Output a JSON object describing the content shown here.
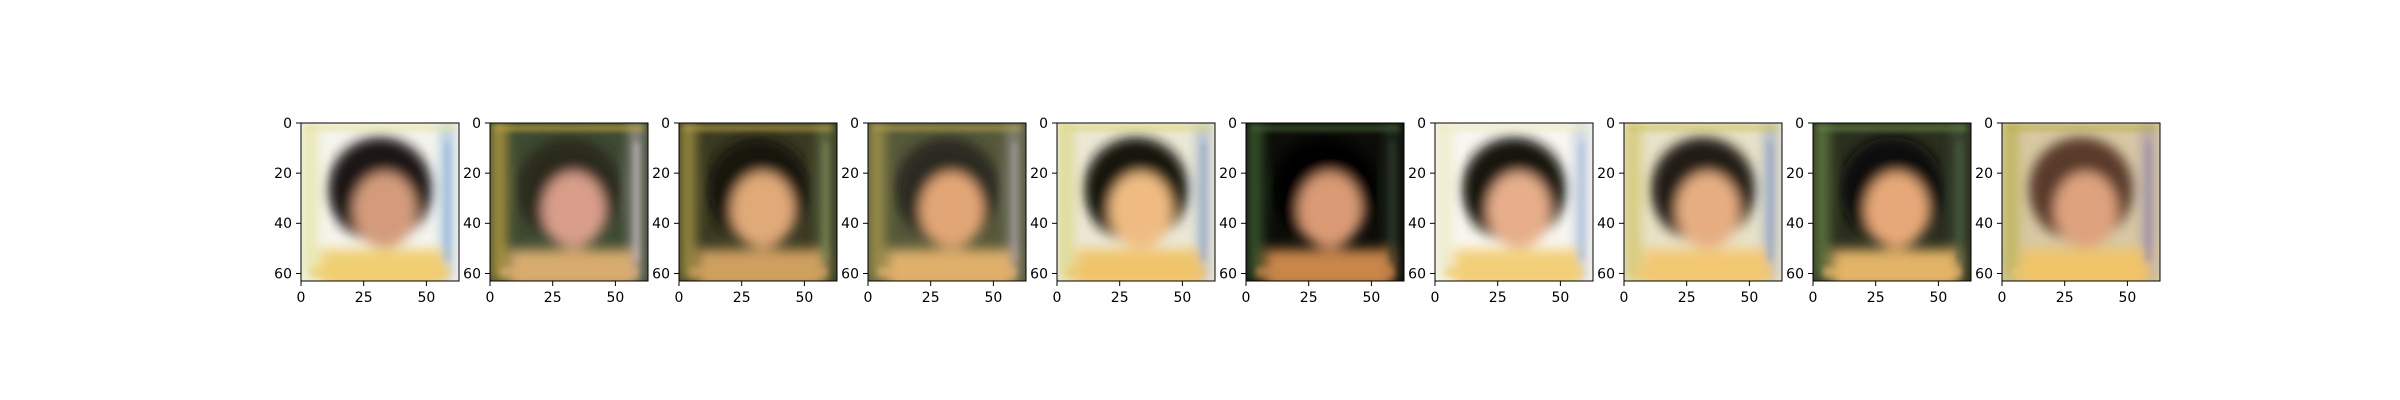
{
  "figure": {
    "panels": [
      {
        "xticks": [
          "0",
          "25",
          "50"
        ],
        "yticks": [
          "0",
          "20",
          "40",
          "60"
        ],
        "xlim": [
          0,
          63
        ],
        "ylim": [
          63,
          0
        ],
        "tone": {
          "bg": "#f5f4ee",
          "hair": "#1e1812",
          "face": "#d39b7c",
          "body": "#f0cf72",
          "edge_left": "#e4e39c",
          "edge_right": "#8cb4d8"
        }
      },
      {
        "xticks": [
          "0",
          "25",
          "50"
        ],
        "yticks": [
          "0",
          "20",
          "40",
          "60"
        ],
        "xlim": [
          0,
          63
        ],
        "ylim": [
          63,
          0
        ],
        "tone": {
          "bg": "#3e4a32",
          "hair": "#2a2a1e",
          "face": "#d89e8a",
          "body": "#d8ac6e",
          "edge_left": "#c9aa42",
          "edge_right": "#c7bcc3"
        }
      },
      {
        "xticks": [
          "0",
          "25",
          "50"
        ],
        "yticks": [
          "0",
          "20",
          "40",
          "60"
        ],
        "xlim": [
          0,
          63
        ],
        "ylim": [
          63,
          0
        ],
        "tone": {
          "bg": "#3a3a22",
          "hair": "#16140e",
          "face": "#e0a978",
          "body": "#cfa060",
          "edge_left": "#b8a44a",
          "edge_right": "#7a8a5a"
        }
      },
      {
        "xticks": [
          "0",
          "25",
          "50"
        ],
        "yticks": [
          "0",
          "20",
          "40",
          "60"
        ],
        "xlim": [
          0,
          63
        ],
        "ylim": [
          63,
          0
        ],
        "tone": {
          "bg": "#55583a",
          "hair": "#2a2a20",
          "face": "#e2a676",
          "body": "#e0b06a",
          "edge_left": "#b3a050",
          "edge_right": "#a7a0a4"
        }
      },
      {
        "xticks": [
          "0",
          "25",
          "50"
        ],
        "yticks": [
          "0",
          "20",
          "40",
          "60"
        ],
        "xlim": [
          0,
          63
        ],
        "ylim": [
          63,
          0
        ],
        "tone": {
          "bg": "#ece8d6",
          "hair": "#171310",
          "face": "#efbb82",
          "body": "#f0c56a",
          "edge_left": "#d9d77e",
          "edge_right": "#8ea7c8"
        }
      },
      {
        "xticks": [
          "0",
          "25",
          "50"
        ],
        "yticks": [
          "0",
          "20",
          "40",
          "60"
        ],
        "xlim": [
          0,
          63
        ],
        "ylim": [
          63,
          0
        ],
        "tone": {
          "bg": "#0c0c08",
          "hair": "#060606",
          "face": "#d99a74",
          "body": "#c8864a",
          "edge_left": "#466a3a",
          "edge_right": "#2e3e2e"
        }
      },
      {
        "xticks": [
          "0",
          "25",
          "50"
        ],
        "yticks": [
          "0",
          "20",
          "40",
          "60"
        ],
        "xlim": [
          0,
          63
        ],
        "ylim": [
          63,
          0
        ],
        "tone": {
          "bg": "#f8f6f0",
          "hair": "#151210",
          "face": "#e6ae8a",
          "body": "#f3cf78",
          "edge_left": "#ece9c0",
          "edge_right": "#a8bcd8"
        }
      },
      {
        "xticks": [
          "0",
          "25",
          "50"
        ],
        "yticks": [
          "0",
          "20",
          "40",
          "60"
        ],
        "xlim": [
          0,
          63
        ],
        "ylim": [
          63,
          0
        ],
        "tone": {
          "bg": "#e8e2c8",
          "hair": "#221a14",
          "face": "#e6ad82",
          "body": "#f3c872",
          "edge_left": "#cfc25e",
          "edge_right": "#8da0c4"
        }
      },
      {
        "xticks": [
          "0",
          "25",
          "50"
        ],
        "yticks": [
          "0",
          "20",
          "40",
          "60"
        ],
        "xlim": [
          0,
          63
        ],
        "ylim": [
          63,
          0
        ],
        "tone": {
          "bg": "#2a2e1e",
          "hair": "#0e0e0a",
          "face": "#e6a878",
          "body": "#e3b468",
          "edge_left": "#6c8a48",
          "edge_right": "#4a5e42"
        }
      },
      {
        "xticks": [
          "0",
          "25",
          "50"
        ],
        "yticks": [
          "0",
          "20",
          "40",
          "60"
        ],
        "xlim": [
          0,
          63
        ],
        "ylim": [
          63,
          0
        ],
        "tone": {
          "bg": "#d8c8a4",
          "hair": "#5a3a2c",
          "face": "#dea27e",
          "body": "#f0c468",
          "edge_left": "#b8b04a",
          "edge_right": "#9a8aa8"
        }
      }
    ]
  }
}
